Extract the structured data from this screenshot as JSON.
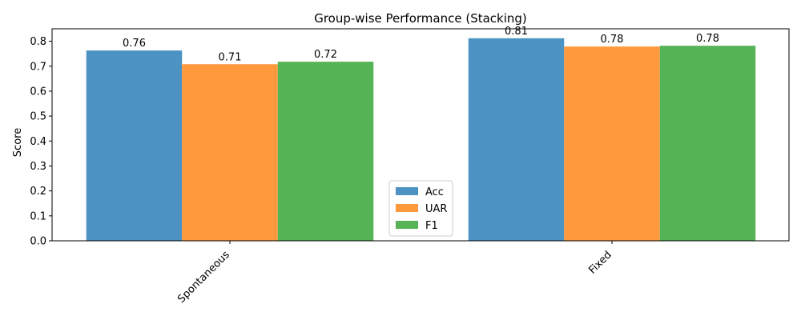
{
  "chart_data": {
    "type": "bar",
    "title": "Group-wise Performance (Stacking)",
    "xlabel": "",
    "ylabel": "Score",
    "categories": [
      "Spontaneous",
      "Fixed"
    ],
    "series": [
      {
        "name": "Acc",
        "values": [
          0.763,
          0.812
        ],
        "labels": [
          "0.76",
          "0.81"
        ],
        "color": "#1f77b4"
      },
      {
        "name": "UAR",
        "values": [
          0.708,
          0.779
        ],
        "labels": [
          "0.71",
          "0.78"
        ],
        "color": "#ff7f0e"
      },
      {
        "name": "F1",
        "values": [
          0.718,
          0.782
        ],
        "labels": [
          "0.72",
          "0.78"
        ],
        "color": "#2ca02c"
      }
    ],
    "ylim": [
      0,
      0.85
    ],
    "yticks": [
      "0.0",
      "0.1",
      "0.2",
      "0.3",
      "0.4",
      "0.5",
      "0.6",
      "0.7",
      "0.8"
    ],
    "bar_opacity": 0.8,
    "legend_position": "lower center",
    "grid": false
  }
}
